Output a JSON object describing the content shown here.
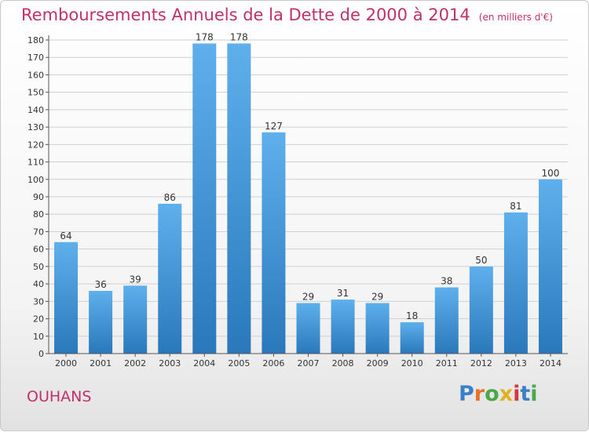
{
  "title": "Remboursements Annuels de la Dette de 2000 à 2014",
  "unit_note": "(en milliers d'€)",
  "commune": "OUHANS",
  "logo_text": "Proxiti",
  "colors": {
    "title": "#c0306a",
    "bar_light": "#5eb0ec",
    "bar_dark": "#2a78bb",
    "grid": "#d0d0d0"
  },
  "chart_data": {
    "type": "bar",
    "title": "Remboursements Annuels de la Dette de 2000 à 2014",
    "subtitle": "(en milliers d'€)",
    "xlabel": "",
    "ylabel": "",
    "categories": [
      "2000",
      "2001",
      "2002",
      "2003",
      "2004",
      "2005",
      "2006",
      "2007",
      "2008",
      "2009",
      "2010",
      "2011",
      "2012",
      "2013",
      "2014"
    ],
    "values": [
      64,
      36,
      39,
      86,
      178,
      178,
      127,
      29,
      31,
      29,
      18,
      38,
      50,
      81,
      100
    ],
    "ylim": [
      0,
      180
    ],
    "yticks": [
      0,
      10,
      20,
      30,
      40,
      50,
      60,
      70,
      80,
      90,
      100,
      110,
      120,
      130,
      140,
      150,
      160,
      170,
      180
    ],
    "grid": true,
    "data_labels": true
  }
}
